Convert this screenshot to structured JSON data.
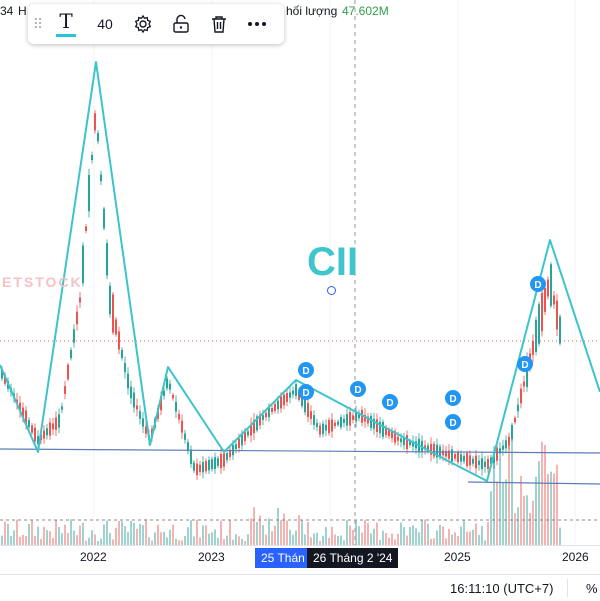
{
  "header": {
    "price_prefix": "34",
    "label_h": "H",
    "volume_label": "hối lượng",
    "volume_value": "47.602M"
  },
  "toolbar": {
    "font_size": "40",
    "icons": [
      "grip-icon",
      "text-icon",
      "gear-icon",
      "lock-open-icon",
      "trash-icon",
      "more-icon"
    ]
  },
  "drawing": {
    "text": "CII",
    "watermark": "ETSTOCK",
    "dividend_marker": "D"
  },
  "x_axis": {
    "labels": [
      "2022",
      "2023",
      "2025",
      "2026"
    ],
    "highlight_left": "25 Thán",
    "highlight_right": "26 Tháng 2 '24"
  },
  "status_bar": {
    "time": "16:11:10 (UTC+7)",
    "percent": "%"
  },
  "colors": {
    "drawing_line": "#3cc4cc",
    "up": "#26a69a",
    "down": "#ef5350",
    "volume_up": "#9fd3cf",
    "volume_down": "#f5b3b1",
    "marker": "#2196f3",
    "trend_line": "#5b7fb6",
    "crosshair_blue": "#2962ff",
    "price_green": "#2e9f4a"
  }
}
